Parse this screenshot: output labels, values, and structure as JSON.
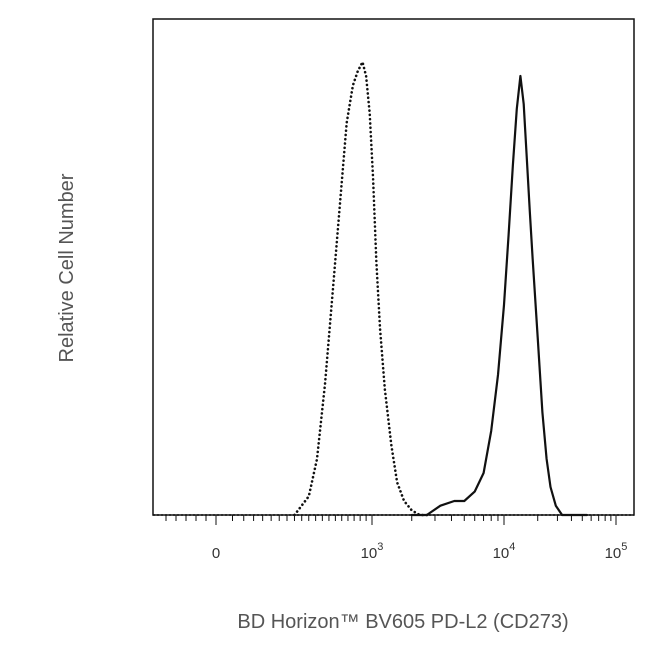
{
  "chart_data": {
    "type": "line",
    "title": "",
    "xlabel": "BD Horizon™ BV605 PD-L2 (CD273)",
    "ylabel": "Relative Cell Number",
    "x_scale": "biexponential",
    "xlim": [
      -300,
      200000
    ],
    "ylim": [
      0,
      1
    ],
    "x_ticks": [
      {
        "value": 0,
        "label": "0",
        "sup": ""
      },
      {
        "value": 1000,
        "label": "10",
        "sup": "3"
      },
      {
        "value": 10000,
        "label": "10",
        "sup": "4"
      },
      {
        "value": 100000,
        "label": "10",
        "sup": "5"
      }
    ],
    "grid": false,
    "legend": "none",
    "series": [
      {
        "style": "dotted",
        "color": "#111111",
        "x": [
          400,
          500,
          560,
          620,
          680,
          740,
          790,
          840,
          880,
          920,
          950,
          980,
          1020,
          1080,
          1150,
          1250,
          1400,
          1550,
          1750,
          2000,
          2300,
          2700
        ],
        "y": [
          0.0,
          0.04,
          0.12,
          0.28,
          0.48,
          0.68,
          0.84,
          0.92,
          0.95,
          0.97,
          0.94,
          0.86,
          0.72,
          0.54,
          0.4,
          0.27,
          0.15,
          0.07,
          0.03,
          0.01,
          0.0,
          0.0
        ]
      },
      {
        "style": "solid",
        "color": "#111111",
        "x": [
          2000,
          2600,
          3300,
          4200,
          5000,
          6000,
          7000,
          8000,
          9000,
          10000,
          11000,
          12000,
          13000,
          14000,
          15000,
          16000,
          17000,
          18000,
          20000,
          22000,
          24000,
          26000,
          29000,
          33000,
          38000,
          45000,
          55000
        ],
        "y": [
          0.0,
          0.0,
          0.02,
          0.03,
          0.03,
          0.05,
          0.09,
          0.18,
          0.3,
          0.45,
          0.6,
          0.75,
          0.87,
          0.94,
          0.88,
          0.76,
          0.65,
          0.55,
          0.38,
          0.22,
          0.12,
          0.06,
          0.02,
          0.0,
          0.0,
          0.0,
          0.0
        ]
      }
    ]
  }
}
